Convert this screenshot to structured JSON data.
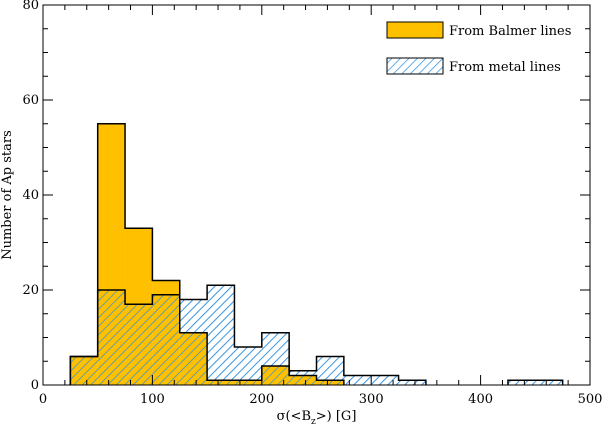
{
  "chart_data": {
    "type": "bar",
    "xlabel_prefix": "σ(<B",
    "xlabel_sub": "z",
    "xlabel_suffix": ">) [G]",
    "ylabel": "Number of Ap stars",
    "xlim": [
      0,
      500
    ],
    "ylim": [
      0,
      80
    ],
    "x_ticks": [
      0,
      100,
      200,
      300,
      400,
      500
    ],
    "y_ticks": [
      0,
      20,
      40,
      60,
      80
    ],
    "bin_width": 25,
    "grid": false,
    "legend_position": "top-right",
    "series": [
      {
        "name": "From Balmer lines",
        "style": "filled",
        "color": "#FFC000",
        "bins": [
          {
            "x0": 25,
            "x1": 50,
            "count": 6
          },
          {
            "x0": 50,
            "x1": 75,
            "count": 55
          },
          {
            "x0": 75,
            "x1": 100,
            "count": 33
          },
          {
            "x0": 100,
            "x1": 125,
            "count": 22
          },
          {
            "x0": 125,
            "x1": 150,
            "count": 11
          },
          {
            "x0": 150,
            "x1": 175,
            "count": 1
          },
          {
            "x0": 175,
            "x1": 200,
            "count": 1
          },
          {
            "x0": 200,
            "x1": 225,
            "count": 4
          },
          {
            "x0": 225,
            "x1": 250,
            "count": 2
          },
          {
            "x0": 250,
            "x1": 275,
            "count": 1
          }
        ]
      },
      {
        "name": "From metal lines",
        "style": "hatched",
        "color": "#2E8FE0",
        "bins": [
          {
            "x0": 25,
            "x1": 50,
            "count": 6
          },
          {
            "x0": 50,
            "x1": 75,
            "count": 20
          },
          {
            "x0": 75,
            "x1": 100,
            "count": 17
          },
          {
            "x0": 100,
            "x1": 125,
            "count": 19
          },
          {
            "x0": 125,
            "x1": 150,
            "count": 18
          },
          {
            "x0": 150,
            "x1": 175,
            "count": 21
          },
          {
            "x0": 175,
            "x1": 200,
            "count": 8
          },
          {
            "x0": 200,
            "x1": 225,
            "count": 11
          },
          {
            "x0": 225,
            "x1": 250,
            "count": 3
          },
          {
            "x0": 250,
            "x1": 275,
            "count": 6
          },
          {
            "x0": 275,
            "x1": 300,
            "count": 2
          },
          {
            "x0": 300,
            "x1": 325,
            "count": 2
          },
          {
            "x0": 325,
            "x1": 350,
            "count": 1
          },
          {
            "x0": 425,
            "x1": 450,
            "count": 1
          },
          {
            "x0": 450,
            "x1": 475,
            "count": 1
          }
        ]
      }
    ]
  }
}
